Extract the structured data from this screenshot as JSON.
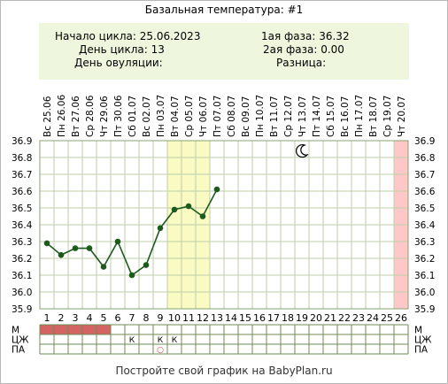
{
  "title": "Базальная температура: #1",
  "info": {
    "cycle_start": "Начало цикла: 25.06.2023",
    "cycle_day": "День цикла: 13",
    "ovulation_day": "День овуляции:",
    "phase1": "1ая фаза: 36.32",
    "phase2": "2ая фаза: 0.00",
    "difference": "Разница:"
  },
  "footer": "Постройте свой график на BabyPlan.ru",
  "colors": {
    "line": "#1e5a1e",
    "grid": "#bfcfa8",
    "highlight_fertile": "#fafac3",
    "highlight_last": "#ffc8c8",
    "menstruation": "#d46464",
    "info_bg": "#eef7dd"
  },
  "icons": {
    "moon": "moon-icon"
  },
  "chart_data": {
    "type": "line",
    "dates": [
      "25.06",
      "26.06",
      "27.06",
      "28.06",
      "29.06",
      "30.06",
      "01.07",
      "02.07",
      "03.07",
      "04.07",
      "05.07",
      "06.07",
      "07.07",
      "08.07",
      "09.07",
      "10.07",
      "11.07",
      "12.07",
      "13.07",
      "14.07",
      "15.07",
      "16.07",
      "17.07",
      "18.07",
      "19.07",
      "20.07"
    ],
    "weekdays": [
      "Вс",
      "Пн",
      "Вт",
      "Ср",
      "Чт",
      "Пт",
      "Сб",
      "Вс",
      "Пн",
      "Вт",
      "Ср",
      "Чт",
      "Пт",
      "Сб",
      "Вс",
      "Пн",
      "Вт",
      "Ср",
      "Чт",
      "Пт",
      "Сб",
      "Вс",
      "Пн",
      "Вт",
      "Ср",
      "Чт"
    ],
    "days": [
      "1",
      "2",
      "3",
      "4",
      "5",
      "6",
      "7",
      "8",
      "9",
      "10",
      "11",
      "12",
      "13",
      "14",
      "15",
      "16",
      "17",
      "18",
      "19",
      "20",
      "21",
      "22",
      "23",
      "24",
      "25",
      "26"
    ],
    "y_ticks": [
      "36.9",
      "36.8",
      "36.7",
      "36.6",
      "36.5",
      "36.4",
      "36.3",
      "36.2",
      "36.1",
      "36.0",
      "35.9"
    ],
    "ylim": [
      35.9,
      36.9
    ],
    "temperatures": [
      36.29,
      36.22,
      36.26,
      36.26,
      36.15,
      36.3,
      36.1,
      36.16,
      36.38,
      36.49,
      36.51,
      36.45,
      36.61
    ],
    "fertile_days": [
      10,
      11,
      12
    ],
    "last_day_highlight": [
      26
    ],
    "moon_day": 19,
    "rows": [
      {
        "label": "М",
        "menstruation_days": [
          1,
          2,
          3,
          4,
          5
        ]
      },
      {
        "label": "ЦЖ",
        "marks": [
          {
            "day": 7,
            "text": "К"
          },
          {
            "day": 9,
            "text": "К"
          },
          {
            "day": 10,
            "text": "К"
          }
        ]
      },
      {
        "label": "ПА",
        "marks": [
          {
            "day": 9,
            "text": "○"
          }
        ]
      }
    ]
  }
}
